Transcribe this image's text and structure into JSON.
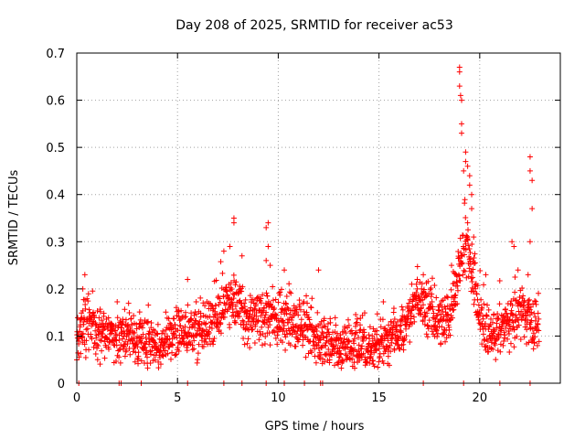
{
  "chart_data": {
    "type": "scatter",
    "title": "Day 208 of 2025, SRMTID for receiver ac53",
    "xlabel": "GPS time / hours",
    "ylabel": "SRMTID / TECUs",
    "xlim": [
      0,
      24
    ],
    "ylim": [
      0,
      0.7
    ],
    "xticks": [
      0,
      5,
      10,
      15,
      20
    ],
    "yticks": [
      0,
      0.1,
      0.2,
      0.3,
      0.4,
      0.5,
      0.6,
      0.7
    ],
    "xtick_labels": [
      "0",
      "5",
      "10",
      "15",
      "20"
    ],
    "ytick_labels": [
      "0",
      "0.1",
      "0.2",
      "0.3",
      "0.4",
      "0.5",
      "0.6",
      "0.7"
    ],
    "grid": true,
    "marker": "+",
    "series": [
      {
        "name": "SRMTID",
        "color": "#ff0000",
        "baseline_profile": [
          [
            0.0,
            0.1
          ],
          [
            0.5,
            0.13
          ],
          [
            1.0,
            0.1
          ],
          [
            2.0,
            0.1
          ],
          [
            3.0,
            0.1
          ],
          [
            4.0,
            0.08
          ],
          [
            5.0,
            0.11
          ],
          [
            6.0,
            0.11
          ],
          [
            7.0,
            0.14
          ],
          [
            7.5,
            0.18
          ],
          [
            8.0,
            0.17
          ],
          [
            8.5,
            0.13
          ],
          [
            9.0,
            0.14
          ],
          [
            9.5,
            0.14
          ],
          [
            10.0,
            0.13
          ],
          [
            11.0,
            0.13
          ],
          [
            12.0,
            0.09
          ],
          [
            13.0,
            0.08
          ],
          [
            14.0,
            0.08
          ],
          [
            15.0,
            0.08
          ],
          [
            16.0,
            0.1
          ],
          [
            17.0,
            0.18
          ],
          [
            17.5,
            0.16
          ],
          [
            18.0,
            0.13
          ],
          [
            18.5,
            0.14
          ],
          [
            19.0,
            0.24
          ],
          [
            19.3,
            0.3
          ],
          [
            19.6,
            0.24
          ],
          [
            20.0,
            0.14
          ],
          [
            20.5,
            0.11
          ],
          [
            21.0,
            0.11
          ],
          [
            21.5,
            0.13
          ],
          [
            22.0,
            0.15
          ],
          [
            22.5,
            0.13
          ],
          [
            23.0,
            0.12
          ]
        ],
        "notable_points": [
          [
            19.0,
            0.67
          ],
          [
            19.0,
            0.66
          ],
          [
            19.0,
            0.63
          ],
          [
            19.05,
            0.61
          ],
          [
            19.1,
            0.6
          ],
          [
            19.1,
            0.55
          ],
          [
            19.1,
            0.53
          ],
          [
            19.3,
            0.49
          ],
          [
            19.3,
            0.47
          ],
          [
            19.4,
            0.46
          ],
          [
            19.5,
            0.44
          ],
          [
            19.5,
            0.42
          ],
          [
            19.6,
            0.4
          ],
          [
            19.6,
            0.37
          ],
          [
            19.2,
            0.45
          ],
          [
            19.4,
            0.34
          ],
          [
            19.7,
            0.31
          ],
          [
            22.5,
            0.48
          ],
          [
            22.5,
            0.45
          ],
          [
            22.6,
            0.43
          ],
          [
            22.6,
            0.37
          ],
          [
            22.5,
            0.3
          ],
          [
            9.5,
            0.34
          ],
          [
            9.4,
            0.33
          ],
          [
            9.5,
            0.29
          ],
          [
            9.4,
            0.26
          ],
          [
            9.6,
            0.25
          ],
          [
            7.8,
            0.35
          ],
          [
            7.8,
            0.34
          ],
          [
            7.6,
            0.29
          ],
          [
            7.3,
            0.28
          ],
          [
            8.2,
            0.27
          ],
          [
            0.4,
            0.23
          ],
          [
            0.3,
            0.2
          ],
          [
            12.0,
            0.24
          ],
          [
            5.5,
            0.22
          ],
          [
            21.6,
            0.3
          ],
          [
            21.7,
            0.29
          ],
          [
            22.4,
            0.23
          ],
          [
            17.2,
            0.23
          ],
          [
            16.9,
            0.22
          ],
          [
            18.6,
            0.25
          ],
          [
            10.3,
            0.24
          ],
          [
            20.3,
            0.23
          ],
          [
            21.9,
            0.24
          ]
        ],
        "zero_points_x": [
          0.1,
          2.1,
          2.2,
          3.2,
          5.5,
          7.3,
          8.2,
          9.4,
          10.3,
          11.3,
          12.1,
          12.2,
          17.2,
          19.2,
          21.0,
          22.5
        ]
      }
    ]
  }
}
